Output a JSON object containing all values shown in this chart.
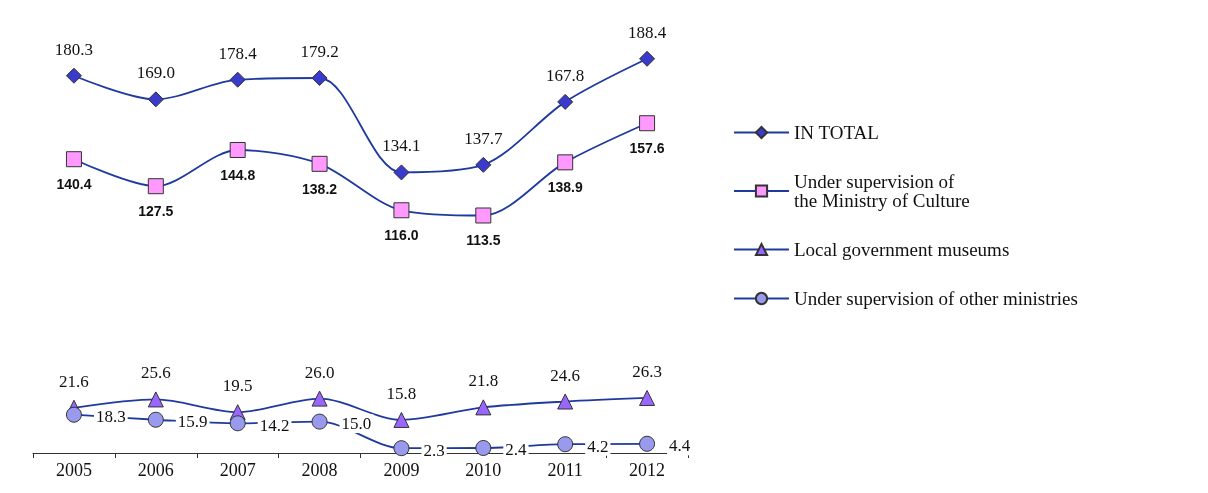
{
  "chart_data": {
    "type": "line",
    "categories": [
      "2005",
      "2006",
      "2007",
      "2008",
      "2009",
      "2010",
      "2011",
      "2012"
    ],
    "series": [
      {
        "name": "IN TOTAL",
        "color": "#3a3acc",
        "marker": "diamond",
        "values": [
          180.3,
          169,
          178.4,
          179.2,
          134.1,
          137.7,
          167.8,
          188.4
        ],
        "value_labels": [
          "180.3",
          "169.0",
          "178.4",
          "179.2",
          "134.1",
          "137.7",
          "167.8",
          "188.4"
        ]
      },
      {
        "name": "Under supervision of\nthe Ministry of Culture",
        "color": "#ff99ff",
        "marker": "square",
        "values": [
          140.4,
          127.5,
          144.8,
          138.2,
          116,
          113.5,
          138.9,
          157.6
        ],
        "value_labels": [
          "140.4",
          "127.5",
          "144.8",
          "138.2",
          "116.0",
          "113.5",
          "138.9",
          "157.6"
        ]
      },
      {
        "name": "Local government museums",
        "color": "#9966ff",
        "marker": "triangle",
        "values": [
          21.6,
          25.6,
          19.5,
          26,
          15.8,
          21.8,
          24.6,
          26.3
        ],
        "value_labels": [
          "21.6",
          "25.6",
          "19.5",
          "26.0",
          "15.8",
          "21.8",
          "24.6",
          "26.3"
        ]
      },
      {
        "name": "Under supervision of other ministries",
        "color": "#9999ee",
        "marker": "circle",
        "values": [
          18.3,
          15.9,
          14.2,
          15,
          2.3,
          2.4,
          4.2,
          4.4
        ],
        "value_labels": [
          "18.3",
          "15.9",
          "14.2",
          "15.0",
          "2.3",
          "2.4",
          "4.2",
          "4.4"
        ]
      }
    ],
    "legend": "right",
    "grid": false
  }
}
